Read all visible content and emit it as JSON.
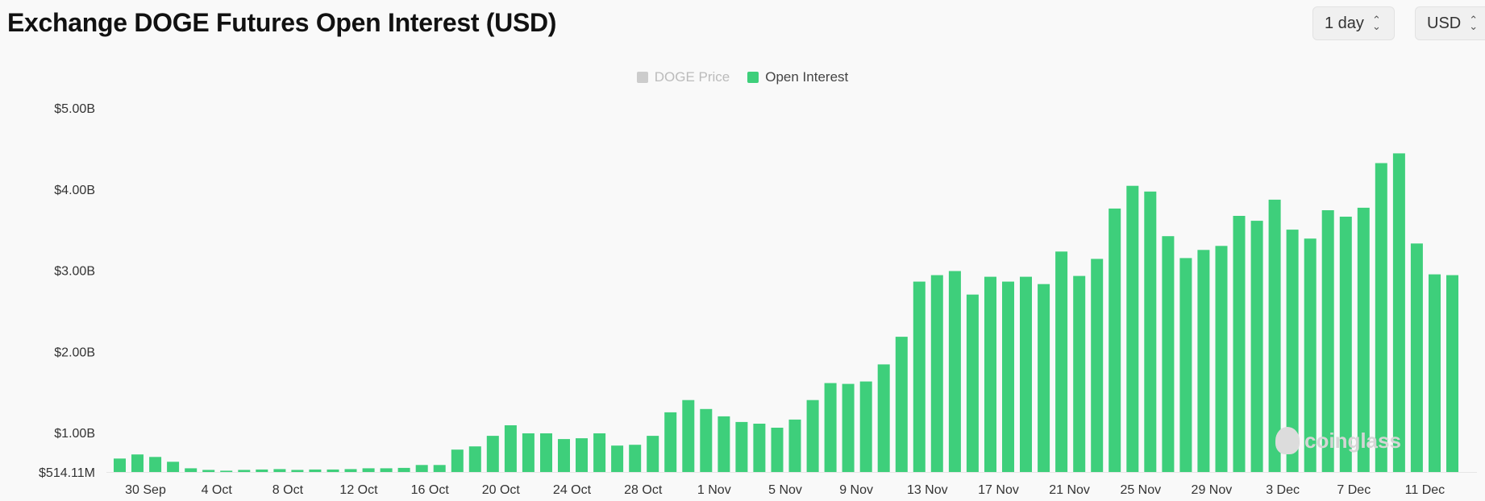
{
  "header": {
    "title": "Exchange DOGE Futures Open Interest (USD)",
    "interval_value": "1 day",
    "currency_value": "USD"
  },
  "legend": [
    {
      "label": "DOGE Price",
      "color": "#cccccc",
      "active": false
    },
    {
      "label": "Open Interest",
      "color": "#3ecf7b",
      "active": true
    }
  ],
  "watermark": "coinglass",
  "colors": {
    "bar": "#3ecf7b",
    "accent": "#3ecf7b"
  },
  "chart_data": {
    "type": "bar",
    "title": "Exchange DOGE Futures Open Interest (USD)",
    "xlabel": "",
    "ylabel": "",
    "y_unit": "USD",
    "ylim": [
      514110000,
      5000000000
    ],
    "y_ticks": [
      514110000,
      1000000000,
      2000000000,
      3000000000,
      4000000000,
      5000000000
    ],
    "y_tick_labels": [
      "$514.11M",
      "$1.00B",
      "$2.00B",
      "$3.00B",
      "$4.00B",
      "$5.00B"
    ],
    "x_tick_labels": [
      "30 Sep",
      "4 Oct",
      "8 Oct",
      "12 Oct",
      "16 Oct",
      "20 Oct",
      "24 Oct",
      "28 Oct",
      "1 Nov",
      "5 Nov",
      "9 Nov",
      "13 Nov",
      "17 Nov",
      "21 Nov",
      "25 Nov",
      "29 Nov",
      "3 Dec",
      "7 Dec",
      "11 Dec"
    ],
    "x_start": "29 Sep",
    "x_end": "12 Dec",
    "grid": false,
    "legend_position": "top-center",
    "series": [
      {
        "name": "Open Interest",
        "values": [
          680000000,
          730000000,
          700000000,
          640000000,
          560000000,
          540000000,
          530000000,
          540000000,
          545000000,
          550000000,
          540000000,
          545000000,
          545000000,
          550000000,
          560000000,
          560000000,
          565000000,
          600000000,
          600000000,
          790000000,
          830000000,
          960000000,
          1090000000,
          990000000,
          990000000,
          920000000,
          930000000,
          990000000,
          840000000,
          850000000,
          960000000,
          1250000000,
          1400000000,
          1290000000,
          1200000000,
          1130000000,
          1110000000,
          1060000000,
          1160000000,
          1400000000,
          1610000000,
          1600000000,
          1630000000,
          1840000000,
          2180000000,
          2860000000,
          2940000000,
          2990000000,
          2700000000,
          2920000000,
          2860000000,
          2920000000,
          2830000000,
          3230000000,
          2930000000,
          3140000000,
          3760000000,
          4040000000,
          3970000000,
          3420000000,
          3150000000,
          3250000000,
          3300000000,
          3670000000,
          3610000000,
          3870000000,
          3500000000,
          3390000000,
          3740000000,
          3660000000,
          3770000000,
          4320000000,
          4440000000,
          3330000000,
          2950000000,
          2940000000
        ]
      }
    ]
  }
}
